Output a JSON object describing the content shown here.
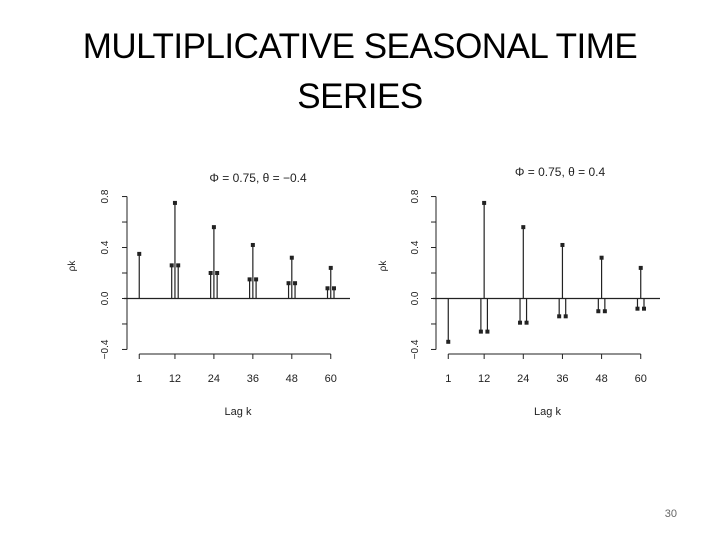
{
  "slide": {
    "title_line1": "MULTIPLICATIVE SEASONAL TIME",
    "title_line2": "SERIES",
    "page_number": "30"
  },
  "chart_data": [
    {
      "type": "bar",
      "subtitle": "Φ = 0.75, θ = −0.4",
      "xlabel": "Lag k",
      "ylabel": "ρk",
      "xticks": [
        1,
        12,
        24,
        36,
        48,
        60
      ],
      "yticks": [
        -0.4,
        0.0,
        0.4,
        0.8
      ],
      "ytick_labels": [
        "−0.4",
        "0.0",
        "0.4",
        "0.8"
      ],
      "xlim": [
        0,
        61
      ],
      "ylim": [
        -0.42,
        0.82
      ],
      "points": [
        {
          "lag": 1,
          "value": 0.35
        },
        {
          "lag": 11,
          "value": 0.26
        },
        {
          "lag": 12,
          "value": 0.75
        },
        {
          "lag": 13,
          "value": 0.26
        },
        {
          "lag": 23,
          "value": 0.2
        },
        {
          "lag": 24,
          "value": 0.56
        },
        {
          "lag": 25,
          "value": 0.2
        },
        {
          "lag": 35,
          "value": 0.15
        },
        {
          "lag": 36,
          "value": 0.42
        },
        {
          "lag": 37,
          "value": 0.15
        },
        {
          "lag": 47,
          "value": 0.12
        },
        {
          "lag": 48,
          "value": 0.32
        },
        {
          "lag": 49,
          "value": 0.12
        },
        {
          "lag": 59,
          "value": 0.08
        },
        {
          "lag": 60,
          "value": 0.24
        },
        {
          "lag": 61,
          "value": 0.08
        }
      ]
    },
    {
      "type": "bar",
      "subtitle": "Φ = 0.75, θ = 0.4",
      "xlabel": "Lag k",
      "ylabel": "ρk",
      "xticks": [
        1,
        12,
        24,
        36,
        48,
        60
      ],
      "yticks": [
        -0.4,
        0.0,
        0.4,
        0.8
      ],
      "ytick_labels": [
        "−0.4",
        "0.0",
        "0.4",
        "0.8"
      ],
      "xlim": [
        0,
        61
      ],
      "ylim": [
        -0.42,
        0.82
      ],
      "points": [
        {
          "lag": 1,
          "value": -0.34
        },
        {
          "lag": 11,
          "value": -0.26
        },
        {
          "lag": 12,
          "value": 0.75
        },
        {
          "lag": 13,
          "value": -0.26
        },
        {
          "lag": 23,
          "value": -0.19
        },
        {
          "lag": 24,
          "value": 0.56
        },
        {
          "lag": 25,
          "value": -0.19
        },
        {
          "lag": 35,
          "value": -0.14
        },
        {
          "lag": 36,
          "value": 0.42
        },
        {
          "lag": 37,
          "value": -0.14
        },
        {
          "lag": 47,
          "value": -0.1
        },
        {
          "lag": 48,
          "value": 0.32
        },
        {
          "lag": 49,
          "value": -0.1
        },
        {
          "lag": 59,
          "value": -0.08
        },
        {
          "lag": 60,
          "value": 0.24
        },
        {
          "lag": 61,
          "value": -0.08
        }
      ]
    }
  ]
}
